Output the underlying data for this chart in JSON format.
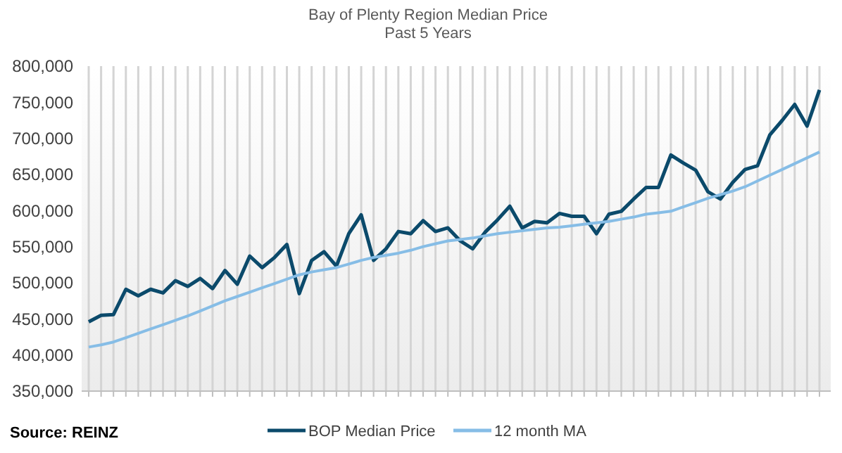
{
  "chart_data": {
    "type": "line",
    "title": "Bay of Plenty Region Median Price",
    "subtitle": "Past 5 Years",
    "categories": [
      null,
      null,
      null,
      null,
      null,
      null,
      null,
      null,
      null,
      null,
      null,
      null,
      null,
      null,
      null,
      null,
      null,
      null,
      null,
      null,
      null,
      null,
      null,
      null,
      null,
      null,
      null,
      null,
      null,
      null,
      null,
      null,
      null,
      null,
      null,
      null,
      null,
      null,
      null,
      null,
      null,
      null,
      null,
      null,
      null,
      null,
      null,
      null,
      null,
      null,
      null,
      null,
      null,
      null,
      null,
      null,
      null,
      null,
      null,
      null
    ],
    "series": [
      {
        "name": "BOP Median Price",
        "color": "#0b4a6b",
        "values": [
          446000,
          455000,
          456000,
          491000,
          482000,
          491000,
          486000,
          503000,
          495000,
          506000,
          492000,
          517000,
          498000,
          537000,
          521000,
          535000,
          553000,
          485000,
          531000,
          543000,
          523000,
          568000,
          594000,
          531000,
          547000,
          571000,
          568000,
          586000,
          571000,
          576000,
          558000,
          547000,
          570000,
          587000,
          606000,
          576000,
          585000,
          583000,
          596000,
          592000,
          592000,
          568000,
          595000,
          599000,
          616000,
          632000,
          632000,
          677000,
          666000,
          656000,
          626000,
          616000,
          639000,
          657000,
          662000,
          705000,
          725000,
          747000,
          717000,
          767000
        ]
      },
      {
        "name": "12 month MA",
        "color": "#86bde6",
        "values": [
          411000,
          414000,
          418000,
          424000,
          430000,
          436000,
          442000,
          448000,
          454000,
          461000,
          468000,
          475000,
          481000,
          487000,
          493000,
          499000,
          505000,
          511000,
          515000,
          518000,
          521000,
          526000,
          531000,
          535000,
          538000,
          541000,
          545000,
          550000,
          554000,
          558000,
          560000,
          562000,
          565000,
          568000,
          570000,
          572000,
          574000,
          576000,
          577000,
          579000,
          581000,
          583000,
          585000,
          588000,
          591000,
          595000,
          597000,
          599000,
          605000,
          611000,
          617000,
          622000,
          627000,
          633000,
          641000,
          649000,
          657000,
          665000,
          673000,
          681000
        ]
      }
    ],
    "ylim": [
      350000,
      800000
    ],
    "yticks": [
      {
        "value": 350000,
        "label": "350,000"
      },
      {
        "value": 400000,
        "label": "400,000"
      },
      {
        "value": 450000,
        "label": "450,000"
      },
      {
        "value": 500000,
        "label": "500,000"
      },
      {
        "value": 550000,
        "label": "550,000"
      },
      {
        "value": 600000,
        "label": "600,000"
      },
      {
        "value": 650000,
        "label": "650,000"
      },
      {
        "value": 700000,
        "label": "700,000"
      },
      {
        "value": 750000,
        "label": "750,000"
      },
      {
        "value": 800000,
        "label": "800,000"
      }
    ],
    "grid": "x",
    "legend": "bottom",
    "marker": "none",
    "line_style": "solid",
    "annotations": [
      "Source: REINZ"
    ]
  }
}
